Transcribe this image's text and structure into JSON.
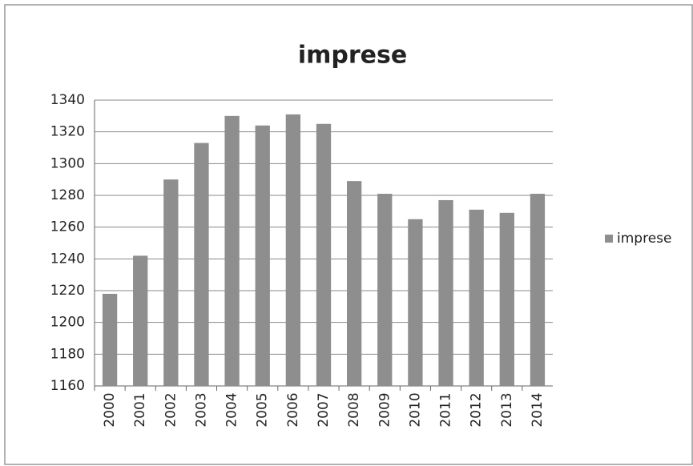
{
  "chart_data": {
    "type": "bar",
    "title": "imprese",
    "categories": [
      "2000",
      "2001",
      "2002",
      "2003",
      "2004",
      "2005",
      "2006",
      "2007",
      "2008",
      "2009",
      "2010",
      "2011",
      "2012",
      "2013",
      "2014"
    ],
    "series": [
      {
        "name": "imprese",
        "color": "#8e8e8e",
        "values": [
          1218,
          1242,
          1290,
          1313,
          1330,
          1324,
          1331,
          1325,
          1289,
          1281,
          1265,
          1277,
          1271,
          1269,
          1281
        ]
      }
    ],
    "ylim": [
      1160,
      1340
    ],
    "yticks": [
      1160,
      1180,
      1200,
      1220,
      1240,
      1260,
      1280,
      1300,
      1320,
      1340
    ],
    "grid": true,
    "legend": "right"
  }
}
